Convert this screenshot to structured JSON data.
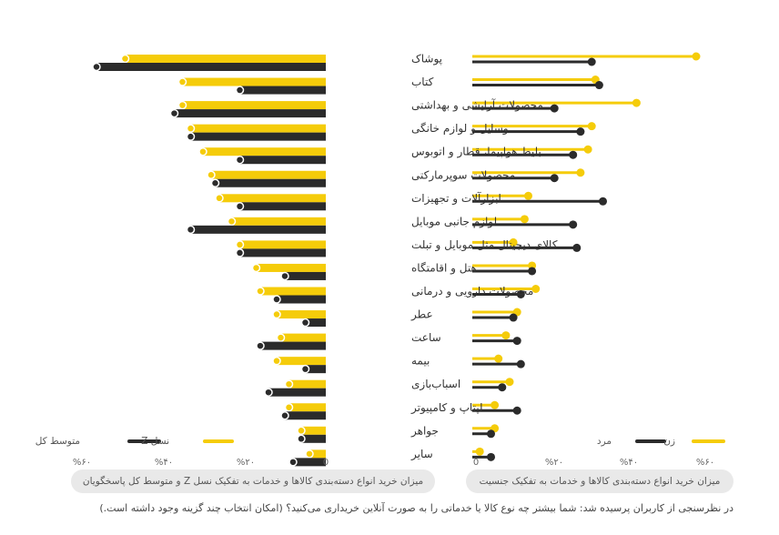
{
  "chart_data": [
    {
      "type": "bar",
      "orientation": "horizontal",
      "title": "میزان خرید انواع دسته‌بندی کالاها و خدمات به تفکیک نسل Z و متوسط کل پاسخگویان",
      "categories": [
        "پوشاک",
        "کتاب",
        "محصولات آرایشی و بهداشتی",
        "وسایل و لوازم خانگی",
        "بلیط هواپیما، قطار و اتوبوس",
        "محصولات سوپرمارکتی",
        "ابزارآلات و تجهیزات",
        "لوازم جانبی موبایل",
        "کالای دیجیتال مثل موبایل و تبلت",
        "هتل و اقامتگاه",
        "محصولات دارویی و درمانی",
        "عطر",
        "ساعت",
        "بیمه",
        "اسباب‌بازی",
        "لپتاپ و کامپیوتر",
        "جواهر",
        "سایر"
      ],
      "series": [
        {
          "name": "نسل Z",
          "color": "#F5CC0A",
          "values": [
            49,
            35,
            35,
            33,
            30,
            28,
            26,
            23,
            21,
            17,
            16,
            12,
            11,
            12,
            9,
            9,
            6,
            4
          ]
        },
        {
          "name": "متوسط کل",
          "color": "#2B2B2B",
          "values": [
            56,
            21,
            37,
            33,
            21,
            27,
            21,
            33,
            21,
            10,
            12,
            5,
            16,
            5,
            14,
            10,
            6,
            8
          ]
        }
      ],
      "xlim": [
        0,
        60
      ],
      "ticks": [
        "%۶۰",
        "%۴۰",
        "%۲۰",
        "0"
      ],
      "legend": [
        "نسل Z",
        "متوسط کل"
      ]
    },
    {
      "type": "bar",
      "orientation": "horizontal",
      "title": "میزان خرید انواع دسته‌بندی کالاها و خدمات به تفکیک جنسیت",
      "categories": [
        "پوشاک",
        "کتاب",
        "محصولات آرایشی و بهداشتی",
        "وسایل و لوازم خانگی",
        "بلیط هواپیما، قطار و اتوبوس",
        "محصولات سوپرمارکتی",
        "ابزارآلات و تجهیزات",
        "لوازم جانبی موبایل",
        "کالای دیجیتال مثل موبایل و تبلت",
        "هتل و اقامتگاه",
        "محصولات دارویی و درمانی",
        "عطر",
        "ساعت",
        "بیمه",
        "اسباب‌بازی",
        "لپتاپ و کامپیوتر",
        "جواهر",
        "سایر"
      ],
      "series": [
        {
          "name": "زن",
          "color": "#F5CC0A",
          "values": [
            60,
            33,
            44,
            32,
            31,
            29,
            15,
            14,
            11,
            16,
            17,
            12,
            9,
            7,
            10,
            6,
            6,
            2
          ]
        },
        {
          "name": "مرد",
          "color": "#2B2B2B",
          "values": [
            32,
            34,
            22,
            29,
            27,
            22,
            35,
            27,
            28,
            16,
            13,
            11,
            12,
            13,
            8,
            12,
            5,
            5
          ]
        }
      ],
      "xlim": [
        0,
        60
      ],
      "ticks": [
        "0",
        "%۲۰",
        "%۴۰",
        "%۶۰"
      ],
      "legend": [
        "مرد",
        "زن"
      ]
    }
  ],
  "footnote": "در نظرسنجی از کاربران پرسیده شد: شما بیشتر چه نوع کالا یا خدماتی را به صورت آنلاین خریداری می‌کنید؟ (امکان انتخاب چند گزینه وجود داشته است.)"
}
